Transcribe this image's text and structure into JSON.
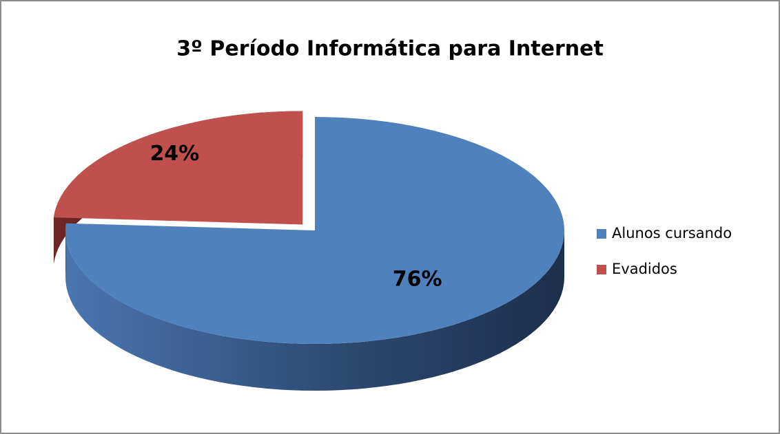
{
  "chart_data": {
    "type": "pie",
    "title": "3º Período Informática para Internet",
    "categories": [
      "Alunos cursando",
      "Evadidos"
    ],
    "values": [
      76,
      24
    ],
    "value_labels": [
      "76%",
      "24%"
    ],
    "colors": [
      "#4f81bd",
      "#c0504d"
    ],
    "legend": "right"
  }
}
